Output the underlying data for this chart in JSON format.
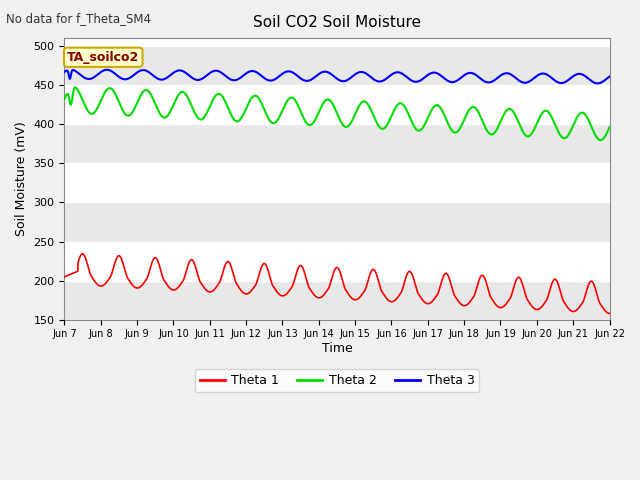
{
  "title": "Soil CO2 Soil Moisture",
  "top_left_text": "No data for f_Theta_SM4",
  "box_label": "TA_soilco2",
  "xlabel": "Time",
  "ylabel": "Soil Moisture (mV)",
  "ylim": [
    150,
    510
  ],
  "yticks": [
    150,
    200,
    250,
    300,
    350,
    400,
    450,
    500
  ],
  "x_tick_labels": [
    "Jun 7",
    "Jun 8",
    "Jun 9",
    "Jun 10",
    "Jun 11",
    "Jun 12",
    "Jun 13",
    "Jun 14",
    "Jun 15",
    "Jun 16",
    "Jun 17",
    "Jun 18",
    "Jun 19",
    "Jun 20",
    "Jun 21",
    "Jun 22"
  ],
  "fig_bg_color": "#f0f0f0",
  "band_colors": [
    "#ffffff",
    "#e0e0e0"
  ],
  "line_colors": {
    "theta1": "#ff0000",
    "theta2": "#00dd00",
    "theta3": "#0000ff"
  },
  "legend_labels": [
    "Theta 1",
    "Theta 2",
    "Theta 3"
  ],
  "num_days": 15.0,
  "cycles_per_day": 1.0,
  "theta1_base": 207,
  "theta1_amplitude": 22,
  "theta1_trend": -2.5,
  "theta1_peak_sharpness": 3.0,
  "theta2_base": 432,
  "theta2_amplitude": 17,
  "theta2_trend": -2.4,
  "theta3_base": 464,
  "theta3_amplitude": 6,
  "theta3_trend": -0.4
}
